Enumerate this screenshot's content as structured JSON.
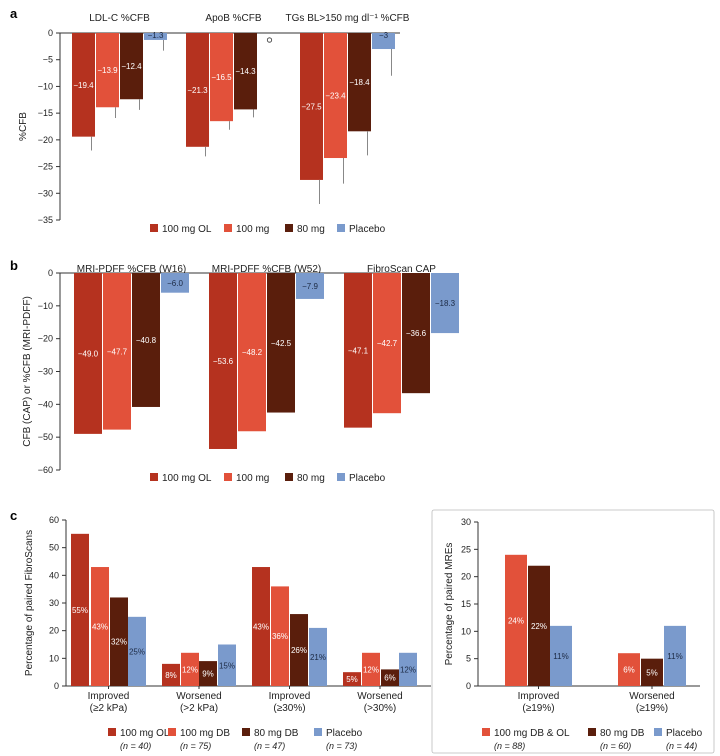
{
  "colors": {
    "100 mg OL": "#B5321F",
    "100 mg": "#E2513A",
    "80 mg": "#5A1E0C",
    "Placebo": "#7A9ACC",
    "100 mg DB & OL": "#E2513A",
    "80 mg DB": "#5A1E0C",
    "100 mg DB": "#E2513A"
  },
  "chart_data": [
    {
      "panel": "a",
      "type": "bar",
      "ylabel": "%CFB",
      "ylim": [
        -35,
        0
      ],
      "yticks": [
        0,
        -5,
        -10,
        -15,
        -20,
        -25,
        -30,
        -35
      ],
      "groups": [
        "LDL-C %CFB",
        "ApoB %CFB",
        "TGs BL>150 mg dl⁻¹ %CFB"
      ],
      "series": [
        {
          "name": "100 mg OL",
          "values": [
            -19.4,
            -21.3,
            -27.5
          ],
          "labels": [
            "−19.4",
            "−21.3",
            "−27.5"
          ],
          "errors": [
            2.6,
            1.8,
            4.5
          ]
        },
        {
          "name": "100 mg",
          "values": [
            -13.9,
            -16.5,
            -23.4
          ],
          "labels": [
            "−13.9",
            "−16.5",
            "−23.4"
          ],
          "errors": [
            2.0,
            1.6,
            4.8
          ]
        },
        {
          "name": "80 mg",
          "values": [
            -12.4,
            -14.3,
            -18.4
          ],
          "labels": [
            "−12.4",
            "−14.3",
            "−18.4"
          ],
          "errors": [
            2.0,
            1.5,
            4.5
          ]
        },
        {
          "name": "Placebo",
          "values": [
            -1.3,
            0.7,
            -3.0
          ],
          "labels": [
            "−1.3",
            "0.7",
            "−3"
          ],
          "errors": [
            2.0,
            0.0,
            5.0
          ]
        }
      ],
      "legend": [
        "100 mg OL",
        "100 mg",
        "80 mg",
        "Placebo"
      ]
    },
    {
      "panel": "b",
      "type": "bar",
      "ylabel": "CFB (CAP) or %CFB (MRI-PDFF)",
      "ylim": [
        -60,
        0
      ],
      "yticks": [
        0,
        -10,
        -20,
        -30,
        -40,
        -50,
        -60
      ],
      "groups": [
        "MRI-PDFF %CFB (W16)",
        "MRI-PDFF %CFB (W52)",
        "FibroScan CAP"
      ],
      "series": [
        {
          "name": "100 mg OL",
          "values": [
            -49.0,
            -53.6,
            -47.1
          ],
          "labels": [
            "−49.0",
            "−53.6",
            "−47.1"
          ]
        },
        {
          "name": "100 mg",
          "values": [
            -47.7,
            -48.2,
            -42.7
          ],
          "labels": [
            "−47.7",
            "−48.2",
            "−42.7"
          ]
        },
        {
          "name": "80 mg",
          "values": [
            -40.8,
            -42.5,
            -36.6
          ],
          "labels": [
            "−40.8",
            "−42.5",
            "−36.6"
          ]
        },
        {
          "name": "Placebo",
          "values": [
            -6.0,
            -7.9,
            -18.3
          ],
          "labels": [
            "−6.0",
            "−7.9",
            "−18.3"
          ]
        }
      ],
      "legend": [
        "100 mg OL",
        "100 mg",
        "80 mg",
        "Placebo"
      ]
    },
    {
      "panel": "c",
      "type": "bar",
      "ylabel": "Percentage of paired FibroScans",
      "ylim": [
        0,
        60
      ],
      "yticks": [
        0,
        10,
        20,
        30,
        40,
        50,
        60
      ],
      "categories": [
        [
          "Improved",
          "(≥2 kPa)"
        ],
        [
          "Worsened",
          "(>2 kPa)"
        ],
        [
          "Improved",
          "(≥30%)"
        ],
        [
          "Worsened",
          "(>30%)"
        ]
      ],
      "series": [
        {
          "name": "100 mg OL",
          "n": "(n = 40)",
          "values": [
            55,
            8,
            43,
            5
          ],
          "labels": [
            "55%",
            "8%",
            "43%",
            "5%"
          ]
        },
        {
          "name": "100 mg DB",
          "n": "(n = 75)",
          "values": [
            43,
            12,
            36,
            12
          ],
          "labels": [
            "43%",
            "12%",
            "36%",
            "12%"
          ]
        },
        {
          "name": "80 mg DB",
          "n": "(n = 47)",
          "values": [
            32,
            9,
            26,
            6
          ],
          "labels": [
            "32%",
            "9%",
            "26%",
            "6%"
          ]
        },
        {
          "name": "Placebo",
          "n": "(n = 73)",
          "values": [
            25,
            15,
            21,
            12
          ],
          "labels": [
            "25%",
            "15%",
            "21%",
            "12%"
          ]
        }
      ]
    },
    {
      "panel": "c-right",
      "type": "bar",
      "ylabel": "Percentage of paired MREs",
      "ylim": [
        0,
        30
      ],
      "yticks": [
        0,
        5,
        10,
        15,
        20,
        25,
        30
      ],
      "categories": [
        [
          "Improved",
          "(≥19%)"
        ],
        [
          "Worsened",
          "(≥19%)"
        ]
      ],
      "series": [
        {
          "name": "100 mg DB & OL",
          "n": "(n = 88)",
          "values": [
            24,
            6
          ],
          "labels": [
            "24%",
            "6%"
          ]
        },
        {
          "name": "80 mg DB",
          "n": "(n = 60)",
          "values": [
            22,
            5
          ],
          "labels": [
            "22%",
            "5%"
          ]
        },
        {
          "name": "Placebo",
          "n": "(n = 44)",
          "values": [
            11,
            11
          ],
          "labels": [
            "11%",
            "11%"
          ]
        }
      ]
    }
  ]
}
